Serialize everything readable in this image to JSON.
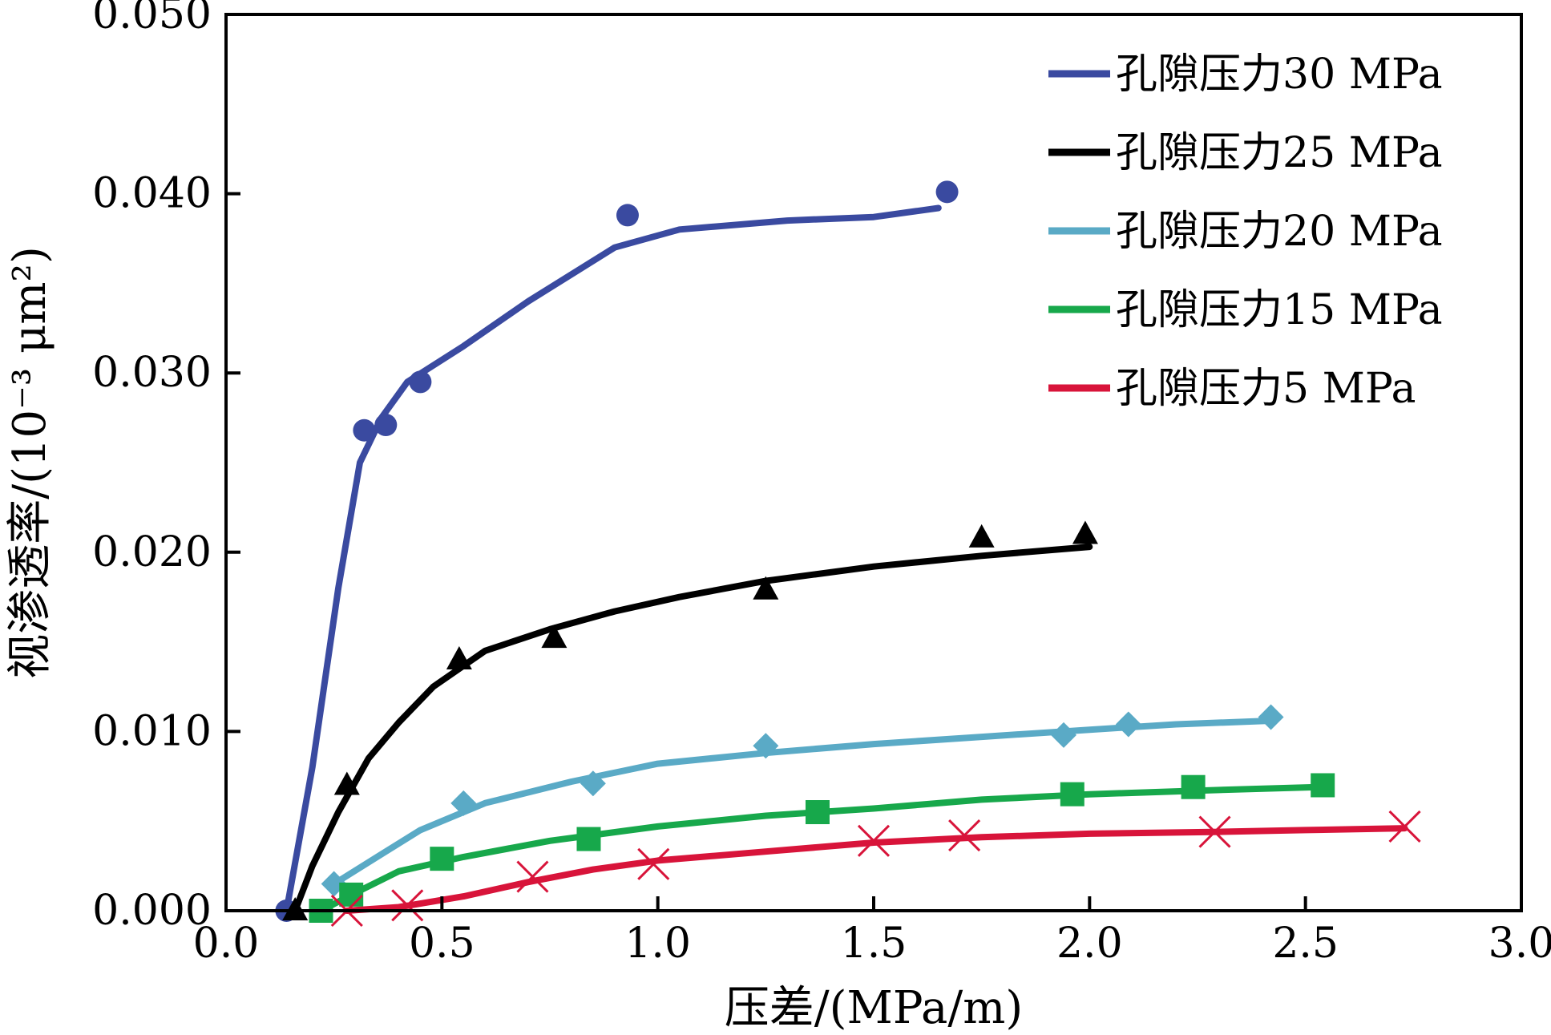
{
  "chart_data": {
    "type": "line",
    "title": "",
    "xlabel": "压差/(MPa/m)",
    "ylabel": "视渗透率/(10⁻³ μm²)",
    "xlim": [
      0.0,
      3.0
    ],
    "ylim": [
      0.0,
      0.05
    ],
    "x_ticks": [
      "0.0",
      "0.5",
      "1.0",
      "1.5",
      "2.0",
      "2.5",
      "3.0"
    ],
    "y_ticks": [
      "0.000",
      "0.010",
      "0.020",
      "0.030",
      "0.040",
      "0.050"
    ],
    "grid": false,
    "legend_position": "top-right",
    "series": [
      {
        "name": "孔隙压力30 MPa",
        "color": "#3a4aa0",
        "marker": "circle",
        "points": [
          [
            0.14,
            0.0
          ],
          [
            0.32,
            0.0268
          ],
          [
            0.37,
            0.0271
          ],
          [
            0.45,
            0.0295
          ],
          [
            0.93,
            0.0388
          ],
          [
            1.67,
            0.0401
          ]
        ],
        "fit": [
          [
            0.14,
            0.0
          ],
          [
            0.2,
            0.008
          ],
          [
            0.26,
            0.018
          ],
          [
            0.31,
            0.025
          ],
          [
            0.36,
            0.0275
          ],
          [
            0.42,
            0.0295
          ],
          [
            0.55,
            0.0315
          ],
          [
            0.7,
            0.034
          ],
          [
            0.9,
            0.037
          ],
          [
            1.05,
            0.038
          ],
          [
            1.3,
            0.0385
          ],
          [
            1.5,
            0.0387
          ],
          [
            1.65,
            0.0392
          ]
        ]
      },
      {
        "name": "孔隙压力25 MPa",
        "color": "#000000",
        "marker": "triangle",
        "points": [
          [
            0.16,
            0.0
          ],
          [
            0.28,
            0.007
          ],
          [
            0.54,
            0.014
          ],
          [
            0.76,
            0.0152
          ],
          [
            1.25,
            0.0179
          ],
          [
            1.75,
            0.0208
          ],
          [
            1.99,
            0.021
          ]
        ],
        "fit": [
          [
            0.16,
            0.0
          ],
          [
            0.2,
            0.0025
          ],
          [
            0.26,
            0.0055
          ],
          [
            0.33,
            0.0085
          ],
          [
            0.4,
            0.0105
          ],
          [
            0.48,
            0.0125
          ],
          [
            0.6,
            0.0145
          ],
          [
            0.75,
            0.0157
          ],
          [
            0.9,
            0.0167
          ],
          [
            1.05,
            0.0175
          ],
          [
            1.25,
            0.0184
          ],
          [
            1.5,
            0.0192
          ],
          [
            1.75,
            0.0198
          ],
          [
            2.0,
            0.0203
          ]
        ]
      },
      {
        "name": "孔隙压力20 MPa",
        "color": "#5aaac6",
        "marker": "diamond",
        "points": [
          [
            0.25,
            0.0015
          ],
          [
            0.55,
            0.006
          ],
          [
            0.85,
            0.0071
          ],
          [
            1.25,
            0.0092
          ],
          [
            1.94,
            0.0098
          ],
          [
            2.09,
            0.0104
          ],
          [
            2.42,
            0.0108
          ]
        ],
        "fit": [
          [
            0.25,
            0.0015
          ],
          [
            0.35,
            0.003
          ],
          [
            0.45,
            0.0045
          ],
          [
            0.6,
            0.006
          ],
          [
            0.8,
            0.0072
          ],
          [
            1.0,
            0.0082
          ],
          [
            1.25,
            0.0088
          ],
          [
            1.5,
            0.0093
          ],
          [
            1.75,
            0.0097
          ],
          [
            2.0,
            0.0101
          ],
          [
            2.2,
            0.0104
          ],
          [
            2.42,
            0.0106
          ]
        ]
      },
      {
        "name": "孔隙压力15 MPa",
        "color": "#17a84b",
        "marker": "square",
        "points": [
          [
            0.22,
            0.0
          ],
          [
            0.29,
            0.0009
          ],
          [
            0.5,
            0.0029
          ],
          [
            0.84,
            0.004
          ],
          [
            1.37,
            0.0055
          ],
          [
            1.96,
            0.0065
          ],
          [
            2.24,
            0.0069
          ],
          [
            2.54,
            0.007
          ]
        ],
        "fit": [
          [
            0.22,
            0.0
          ],
          [
            0.3,
            0.001
          ],
          [
            0.4,
            0.0022
          ],
          [
            0.55,
            0.003
          ],
          [
            0.75,
            0.0039
          ],
          [
            1.0,
            0.0047
          ],
          [
            1.25,
            0.0053
          ],
          [
            1.5,
            0.0057
          ],
          [
            1.75,
            0.0062
          ],
          [
            2.0,
            0.0065
          ],
          [
            2.25,
            0.0067
          ],
          [
            2.53,
            0.0069
          ]
        ]
      },
      {
        "name": "孔隙压力5 MPa",
        "color": "#d8143a",
        "marker": "x",
        "points": [
          [
            0.28,
            0.0
          ],
          [
            0.42,
            0.0003
          ],
          [
            0.71,
            0.0019
          ],
          [
            0.99,
            0.0026
          ],
          [
            1.5,
            0.0039
          ],
          [
            1.71,
            0.0042
          ],
          [
            2.29,
            0.0044
          ],
          [
            2.73,
            0.0047
          ]
        ],
        "fit": [
          [
            0.28,
            0.0
          ],
          [
            0.4,
            0.0002
          ],
          [
            0.55,
            0.0008
          ],
          [
            0.7,
            0.0016
          ],
          [
            0.85,
            0.0023
          ],
          [
            1.0,
            0.0028
          ],
          [
            1.25,
            0.0033
          ],
          [
            1.5,
            0.0038
          ],
          [
            1.75,
            0.0041
          ],
          [
            2.0,
            0.0043
          ],
          [
            2.3,
            0.0044
          ],
          [
            2.5,
            0.0045
          ],
          [
            2.73,
            0.0046
          ]
        ]
      }
    ]
  }
}
